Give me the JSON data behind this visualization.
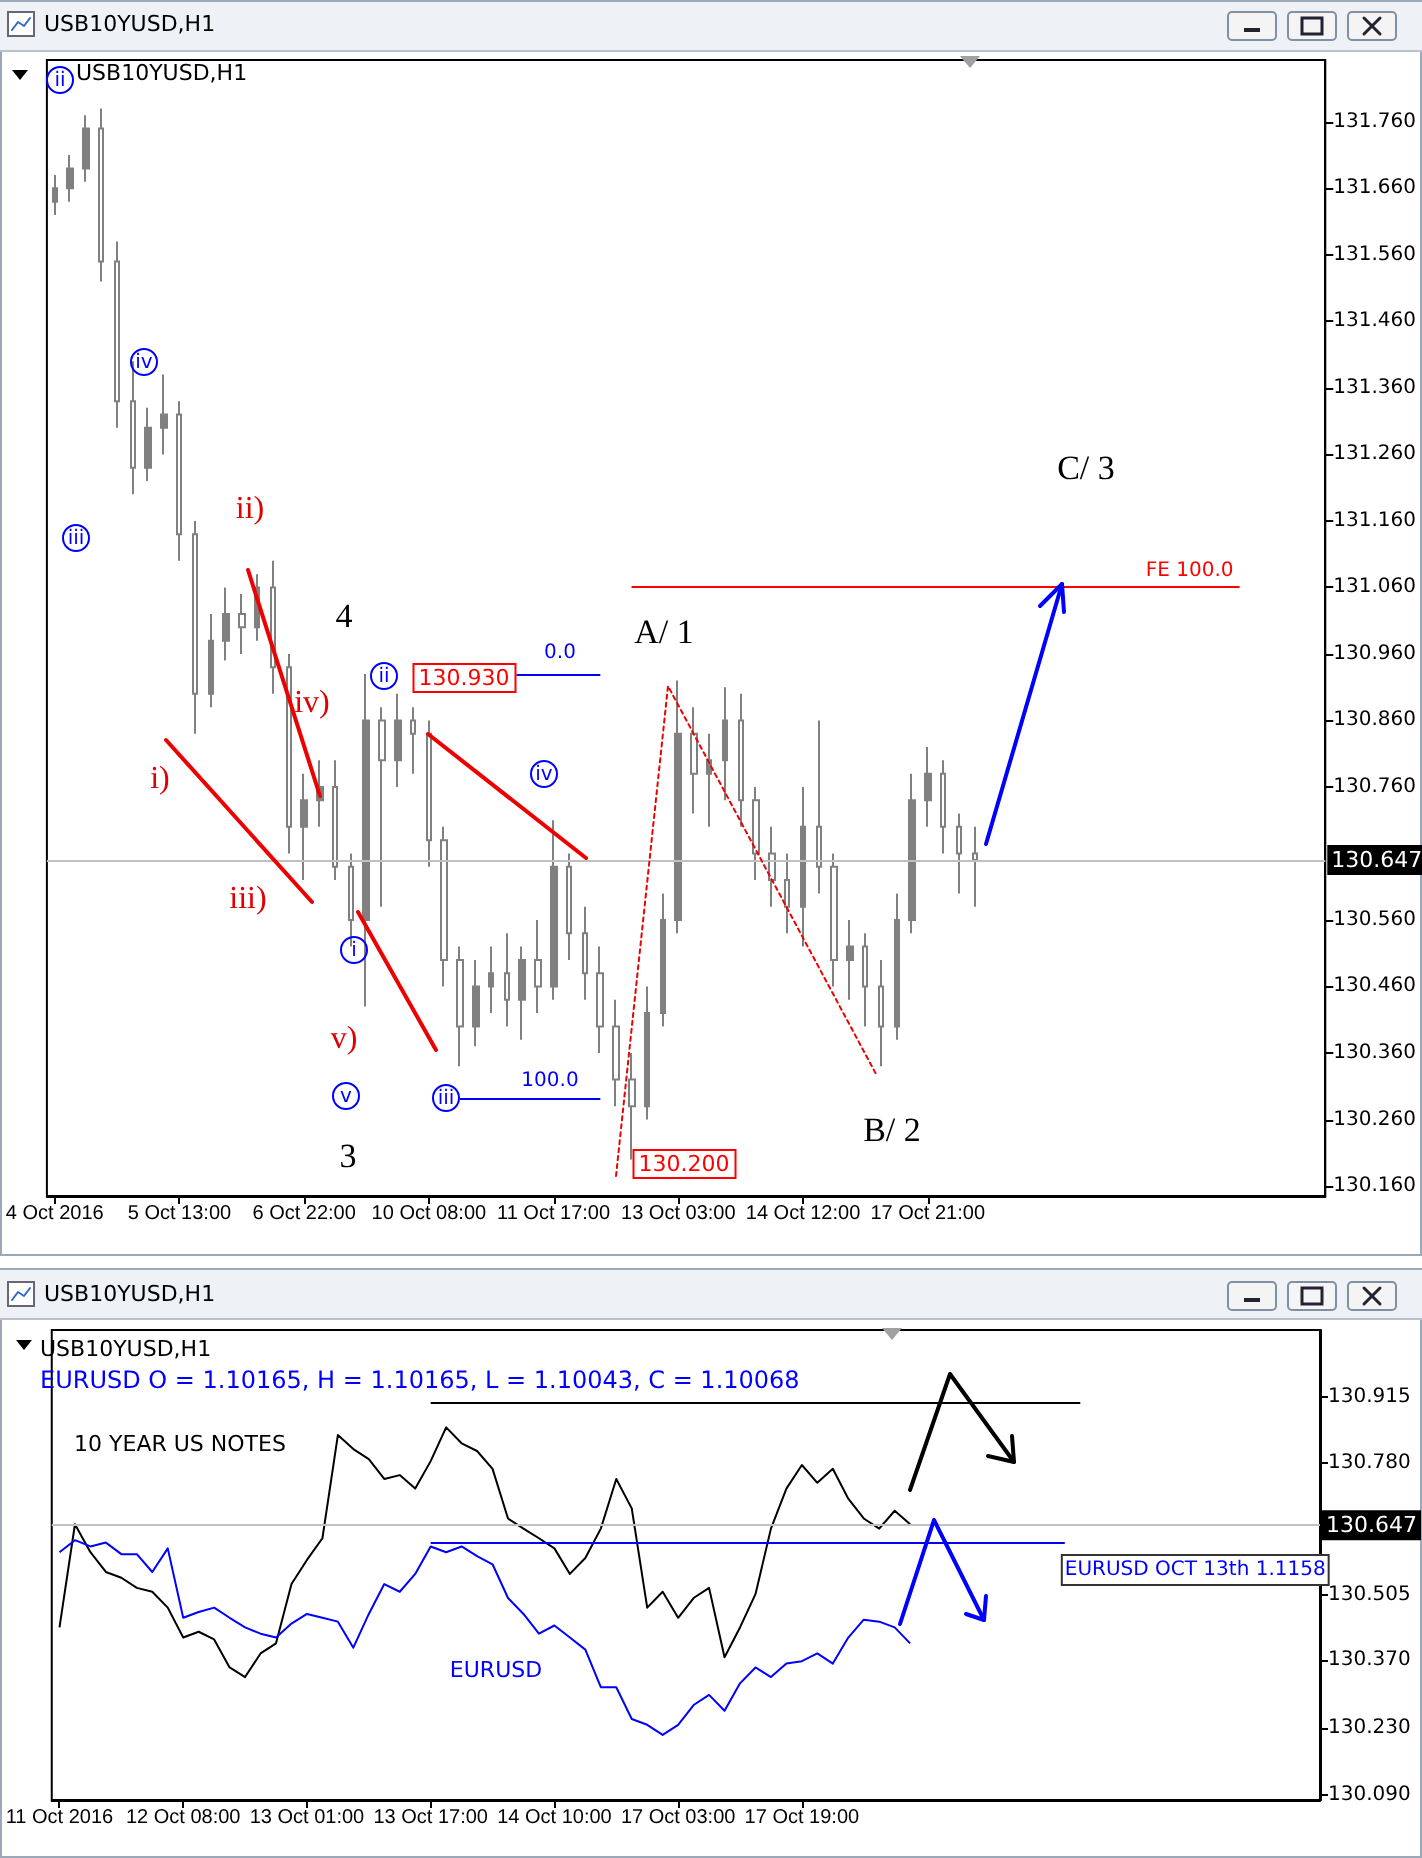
{
  "chart_data": [
    {
      "type": "candlestick",
      "title": "USB10YUSD,H1",
      "annotations": [
        "USB10YUSD,H1",
        "ii",
        "iv",
        "iii",
        "ii)",
        "4",
        "iv)",
        "i)",
        "iii)",
        "i",
        "v)",
        "v",
        "iii",
        "3",
        "ii",
        "iv",
        "130.930",
        "130.200",
        "A/ 1",
        "B/ 2",
        "C/ 3",
        "0.0",
        "100.0"
      ],
      "categories": [
        "4 Oct 2016",
        null,
        null,
        null,
        null,
        null,
        null,
        null,
        "5 Oct 13:00",
        null,
        null,
        null,
        null,
        null,
        null,
        null,
        "6 Oct 22:00",
        null,
        null,
        null,
        null,
        null,
        null,
        null,
        "10 Oct 08:00",
        null,
        null,
        null,
        null,
        null,
        null,
        null,
        "11 Oct 17:00",
        null,
        null,
        null,
        null,
        null,
        null,
        null,
        "13 Oct 03:00",
        null,
        null,
        null,
        null,
        null,
        null,
        null,
        "14 Oct 12:00",
        null,
        null,
        null,
        null,
        null,
        null,
        null,
        "17 Oct 21:00",
        null,
        null,
        null,
        null,
        null,
        null,
        null,
        null,
        null,
        null,
        null,
        null,
        null,
        null,
        null,
        null,
        null,
        null,
        null,
        null,
        null,
        null,
        null,
        null,
        null
      ],
      "ohlc": [
        [
          131.64,
          131.68,
          131.62,
          131.66
        ],
        [
          131.66,
          131.71,
          131.64,
          131.69
        ],
        [
          131.69,
          131.77,
          131.67,
          131.75
        ],
        [
          131.75,
          131.78,
          131.52,
          131.55
        ],
        [
          131.55,
          131.58,
          131.3,
          131.34
        ],
        [
          131.34,
          131.4,
          131.2,
          131.24
        ],
        [
          131.24,
          131.33,
          131.22,
          131.3
        ],
        [
          131.3,
          131.38,
          131.26,
          131.32
        ],
        [
          131.32,
          131.34,
          131.1,
          131.14
        ],
        [
          131.14,
          131.16,
          130.84,
          130.9
        ],
        [
          130.9,
          131.02,
          130.88,
          130.98
        ],
        [
          130.98,
          131.06,
          130.95,
          131.02
        ],
        [
          131.02,
          131.05,
          130.96,
          131.0
        ],
        [
          131.0,
          131.08,
          130.98,
          131.06
        ],
        [
          131.06,
          131.1,
          130.9,
          130.94
        ],
        [
          130.94,
          130.96,
          130.66,
          130.7
        ],
        [
          130.7,
          130.78,
          130.62,
          130.74
        ],
        [
          130.74,
          130.8,
          130.7,
          130.76
        ],
        [
          130.76,
          130.8,
          130.62,
          130.64
        ],
        [
          130.64,
          130.66,
          130.52,
          130.56
        ],
        [
          130.56,
          130.93,
          130.43,
          130.86
        ],
        [
          130.86,
          130.88,
          130.58,
          130.8
        ],
        [
          130.8,
          130.9,
          130.76,
          130.86
        ],
        [
          130.86,
          130.88,
          130.78,
          130.84
        ],
        [
          130.84,
          130.86,
          130.64,
          130.68
        ],
        [
          130.68,
          130.7,
          130.46,
          130.5
        ],
        [
          130.5,
          130.52,
          130.34,
          130.4
        ],
        [
          130.4,
          130.5,
          130.37,
          130.46
        ],
        [
          130.46,
          130.52,
          130.42,
          130.48
        ],
        [
          130.48,
          130.54,
          130.4,
          130.44
        ],
        [
          130.44,
          130.52,
          130.38,
          130.5
        ],
        [
          130.5,
          130.56,
          130.42,
          130.46
        ],
        [
          130.46,
          130.71,
          130.44,
          130.64
        ],
        [
          130.64,
          130.66,
          130.5,
          130.54
        ],
        [
          130.54,
          130.58,
          130.44,
          130.48
        ],
        [
          130.48,
          130.52,
          130.36,
          130.4
        ],
        [
          130.4,
          130.44,
          130.28,
          130.32
        ],
        [
          130.32,
          130.36,
          130.2,
          130.28
        ],
        [
          130.28,
          130.46,
          130.26,
          130.42
        ],
        [
          130.42,
          130.6,
          130.4,
          130.56
        ],
        [
          130.56,
          130.92,
          130.54,
          130.84
        ],
        [
          130.84,
          130.88,
          130.72,
          130.78
        ],
        [
          130.78,
          130.84,
          130.7,
          130.8
        ],
        [
          130.8,
          130.91,
          130.74,
          130.86
        ],
        [
          130.86,
          130.9,
          130.7,
          130.74
        ],
        [
          130.74,
          130.76,
          130.62,
          130.66
        ],
        [
          130.66,
          130.7,
          130.58,
          130.62
        ],
        [
          130.62,
          130.66,
          130.54,
          130.58
        ],
        [
          130.58,
          130.76,
          130.52,
          130.7
        ],
        [
          130.7,
          130.86,
          130.6,
          130.64
        ],
        [
          130.64,
          130.66,
          130.46,
          130.5
        ],
        [
          130.5,
          130.56,
          130.44,
          130.52
        ],
        [
          130.52,
          130.54,
          130.4,
          130.46
        ],
        [
          130.46,
          130.5,
          130.34,
          130.4
        ],
        [
          130.4,
          130.6,
          130.38,
          130.56
        ],
        [
          130.56,
          130.78,
          130.54,
          130.74
        ],
        [
          130.74,
          130.82,
          130.7,
          130.78
        ],
        [
          130.78,
          130.8,
          130.66,
          130.7
        ],
        [
          130.7,
          130.72,
          130.6,
          130.66
        ],
        [
          130.66,
          130.7,
          130.58,
          130.65
        ],
        null,
        null,
        null,
        null,
        null,
        null,
        null,
        null,
        null,
        null,
        null,
        null,
        null,
        null,
        null,
        null,
        null,
        null,
        null,
        null,
        null,
        null
      ],
      "color": "#808080",
      "ylim": [
        130.145,
        131.853
      ],
      "yticks": [
        {
          "value": 131.76,
          "label": "131.760"
        },
        {
          "value": 131.66,
          "label": "131.660"
        },
        {
          "value": 131.56,
          "label": "131.560"
        },
        {
          "value": 131.46,
          "label": "131.460"
        },
        {
          "value": 131.36,
          "label": "131.360"
        },
        {
          "value": 131.26,
          "label": "131.260"
        },
        {
          "value": 131.16,
          "label": "131.160"
        },
        {
          "value": 131.06,
          "label": "131.060"
        },
        {
          "value": 130.96,
          "label": "130.960"
        },
        {
          "value": 130.86,
          "label": "130.860"
        },
        {
          "value": 130.76,
          "label": "130.760"
        },
        {
          "value": 130.56,
          "label": "130.560"
        },
        {
          "value": 130.46,
          "label": "130.460"
        },
        {
          "value": 130.36,
          "label": "130.360"
        },
        {
          "value": 130.26,
          "label": "130.260"
        },
        {
          "value": 130.16,
          "label": "130.160"
        }
      ],
      "ref_lines": [
        {
          "axis": "y",
          "value": 131.06,
          "label": "FE 100.0",
          "color": "#ff0000"
        },
        {
          "axis": "y",
          "value": 130.647,
          "label": "130.647",
          "color": "#c0c0c0"
        },
        {
          "axis": "y",
          "value": 130.93,
          "color": "#0000ff"
        },
        {
          "axis": "y",
          "value": 130.293,
          "color": "#0000ff"
        }
      ]
    },
    {
      "type": "line",
      "title": "USB10YUSD,H1",
      "subtitle": "EURUSD O = 1.10165, H = 1.10165, L = 1.10043, C = 1.10068",
      "annotations": [
        "USB10YUSD,H1"
      ],
      "categories": [
        "11 Oct 2016",
        null,
        null,
        null,
        null,
        null,
        null,
        null,
        "12 Oct 08:00",
        null,
        null,
        null,
        null,
        null,
        null,
        null,
        "13 Oct 01:00",
        null,
        null,
        null,
        null,
        null,
        null,
        null,
        "13 Oct 17:00",
        null,
        null,
        null,
        null,
        null,
        null,
        null,
        "14 Oct 10:00",
        null,
        null,
        null,
        null,
        null,
        null,
        null,
        "17 Oct 03:00",
        null,
        null,
        null,
        null,
        null,
        null,
        null,
        "17 Oct 19:00",
        null,
        null,
        null,
        null,
        null,
        null,
        null,
        null,
        null,
        null,
        null,
        null,
        null,
        null,
        null,
        null,
        null,
        null,
        null,
        null,
        null,
        null,
        null,
        null,
        null,
        null,
        null,
        null,
        null,
        null,
        null,
        null,
        null
      ],
      "series": [
        {
          "name": "10 YEAR US NOTES",
          "color": "#000000",
          "values": [
            130.438,
            130.652,
            130.594,
            130.553,
            130.541,
            130.52,
            130.512,
            130.479,
            130.417,
            130.429,
            130.413,
            130.355,
            130.335,
            130.384,
            130.405,
            130.528,
            130.578,
            130.623,
            130.837,
            130.808,
            130.787,
            130.746,
            130.754,
            130.726,
            130.783,
            130.853,
            130.82,
            130.804,
            130.767,
            130.664,
            130.643,
            130.623,
            130.602,
            130.549,
            130.582,
            130.643,
            130.746,
            130.685,
            130.479,
            130.512,
            130.458,
            130.499,
            130.52,
            130.376,
            130.438,
            130.507,
            130.643,
            130.726,
            130.775,
            130.738,
            130.767,
            130.705,
            130.664,
            130.643,
            130.68,
            130.652,
            null,
            null,
            null,
            null,
            null,
            null,
            null,
            null,
            null,
            null,
            null,
            null,
            null,
            null,
            null,
            null,
            null,
            null,
            null,
            null,
            null,
            null,
            null,
            null,
            null,
            null
          ]
        },
        {
          "name": "EURUSD",
          "color": "#0000ff",
          "values": [
            130.594,
            130.619,
            130.606,
            130.614,
            130.59,
            130.59,
            130.553,
            130.602,
            130.458,
            130.47,
            130.479,
            130.458,
            130.438,
            130.425,
            130.417,
            130.446,
            130.466,
            130.458,
            130.45,
            130.396,
            130.466,
            130.528,
            130.512,
            130.549,
            130.606,
            130.594,
            130.606,
            130.586,
            130.569,
            130.499,
            130.466,
            130.425,
            130.442,
            130.417,
            130.392,
            130.314,
            130.314,
            130.248,
            130.236,
            130.215,
            130.236,
            130.277,
            130.298,
            130.265,
            130.322,
            130.355,
            130.335,
            130.363,
            130.368,
            130.384,
            130.363,
            130.417,
            130.454,
            130.45,
            130.438,
            130.405,
            null,
            null,
            null,
            null,
            null,
            null,
            null,
            null,
            null,
            null,
            null,
            null,
            null,
            null,
            null,
            null,
            null,
            null,
            null,
            null,
            null,
            null,
            null,
            null,
            null,
            null
          ]
        }
      ],
      "marker": "none",
      "ylim": [
        130.08,
        131.055
      ],
      "yticks": [
        {
          "value": 130.915,
          "label": "130.915"
        },
        {
          "value": 130.78,
          "label": "130.780"
        },
        {
          "value": 130.505,
          "label": "130.505"
        },
        {
          "value": 130.37,
          "label": "130.370"
        },
        {
          "value": 130.23,
          "label": "130.230"
        },
        {
          "value": 130.09,
          "label": "130.090"
        }
      ],
      "ref_lines": [
        {
          "axis": "y",
          "value": 130.647,
          "label": "130.647",
          "color": "#c0c0c0"
        },
        {
          "axis": "y",
          "value": 130.905,
          "color": "#000000"
        },
        {
          "axis": "y",
          "value": 130.615,
          "label": "EURUSD OCT 13th 1.1158",
          "color": "#0000ff"
        }
      ]
    }
  ]
}
